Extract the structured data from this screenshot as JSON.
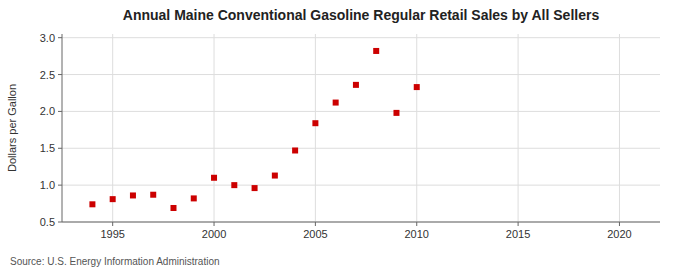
{
  "chart_data": {
    "type": "scatter",
    "title": "Annual Maine Conventional Gasoline Regular Retail Sales by All Sellers",
    "ylabel": "Dollars per Gallon",
    "source": "Source: U.S. Energy Information Administration",
    "x": [
      1994,
      1995,
      1996,
      1997,
      1998,
      1999,
      2000,
      2001,
      2002,
      2003,
      2004,
      2005,
      2006,
      2007,
      2008,
      2009,
      2010
    ],
    "values": [
      0.74,
      0.81,
      0.86,
      0.87,
      0.69,
      0.82,
      1.1,
      1.0,
      0.96,
      1.13,
      1.47,
      1.84,
      2.12,
      2.36,
      2.82,
      1.98,
      2.33
    ],
    "color": "#cc0000",
    "marker": "square",
    "xlim": [
      1992.5,
      2022
    ],
    "ylim": [
      0.5,
      3.05
    ],
    "xticks": [
      1995,
      2000,
      2005,
      2010,
      2015,
      2020
    ],
    "yticks": [
      0.5,
      {
        "value": 1.0,
        "label": "1.0"
      },
      1.5,
      {
        "value": 2.0,
        "label": "2.0"
      },
      2.5,
      {
        "value": 3.0,
        "label": "3.0"
      }
    ],
    "grid": true
  }
}
